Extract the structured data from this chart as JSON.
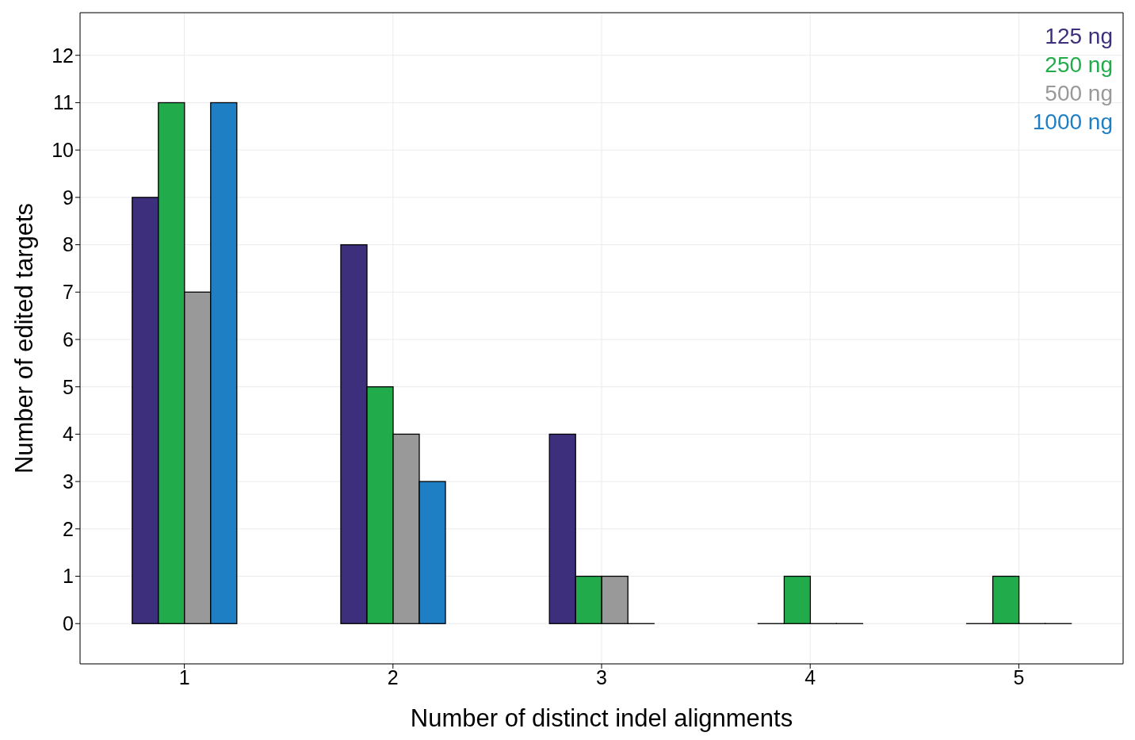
{
  "chart_data": {
    "type": "bar",
    "xlabel": "Number of distinct indel alignments",
    "ylabel": "Number of edited targets",
    "categories": [
      "1",
      "2",
      "3",
      "4",
      "5"
    ],
    "series": [
      {
        "name": "125 ng",
        "color": "#3d2f7b",
        "values": [
          9,
          8,
          4,
          0,
          0
        ]
      },
      {
        "name": "250 ng",
        "color": "#22ab4b",
        "values": [
          11,
          5,
          1,
          1,
          1
        ]
      },
      {
        "name": "500 ng",
        "color": "#999999",
        "values": [
          7,
          4,
          1,
          0,
          0
        ]
      },
      {
        "name": "1000 ng",
        "color": "#1f7fc4",
        "values": [
          11,
          3,
          0,
          0,
          0
        ]
      }
    ],
    "ylim": [
      -0.85,
      12.9
    ],
    "yticks": [
      0,
      1,
      2,
      3,
      4,
      5,
      6,
      7,
      8,
      9,
      10,
      11,
      12
    ],
    "grid": true,
    "legend": "top right"
  }
}
